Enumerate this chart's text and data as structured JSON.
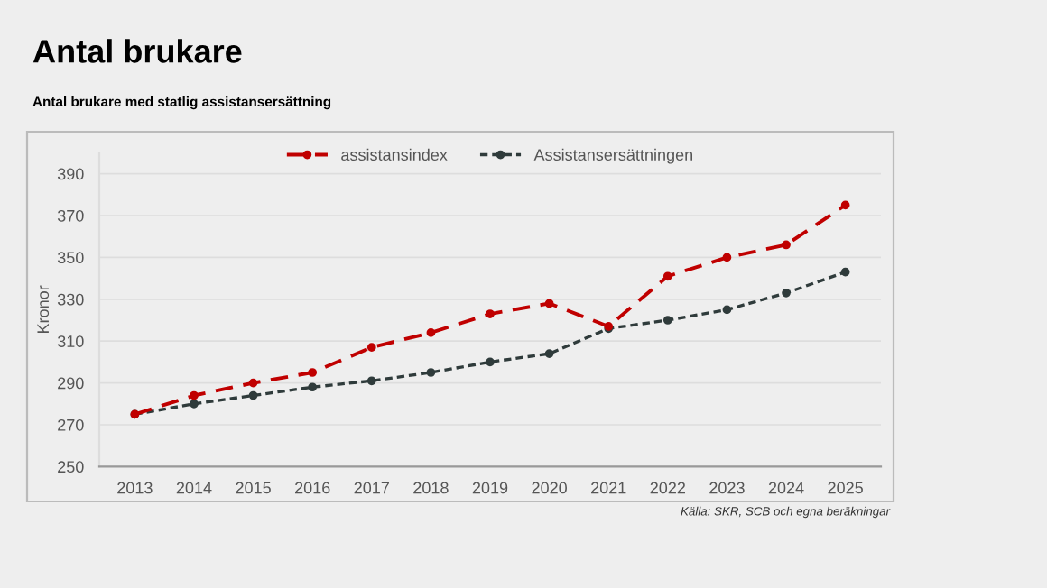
{
  "chart_data": {
    "type": "line",
    "title": "Antal brukare",
    "subtitle": "Antal brukare med statlig assistansersättning",
    "ylabel": "Kronor",
    "categories": [
      "2013",
      "2014",
      "2015",
      "2016",
      "2017",
      "2018",
      "2019",
      "2020",
      "2021",
      "2022",
      "2023",
      "2024",
      "2025"
    ],
    "series": [
      {
        "name": "assistansindex",
        "color": "#c00000",
        "line_style": "dashed",
        "values": [
          275,
          284,
          290,
          295,
          307,
          314,
          323,
          328,
          317,
          341,
          350,
          356,
          375
        ]
      },
      {
        "name": "Assistansersättningen",
        "color": "#2f3b3b",
        "line_style": "dotted",
        "values": [
          275,
          280,
          284,
          288,
          291,
          295,
          300,
          304,
          316,
          320,
          325,
          333,
          343
        ]
      }
    ],
    "ylim": [
      250,
      400
    ],
    "yticks": [
      250,
      270,
      290,
      310,
      330,
      350,
      370,
      390
    ],
    "grid": "y",
    "legend": "top",
    "marker": "circle",
    "annotations": [
      "Källa: SKR, SCB och egna beräkningar"
    ]
  }
}
